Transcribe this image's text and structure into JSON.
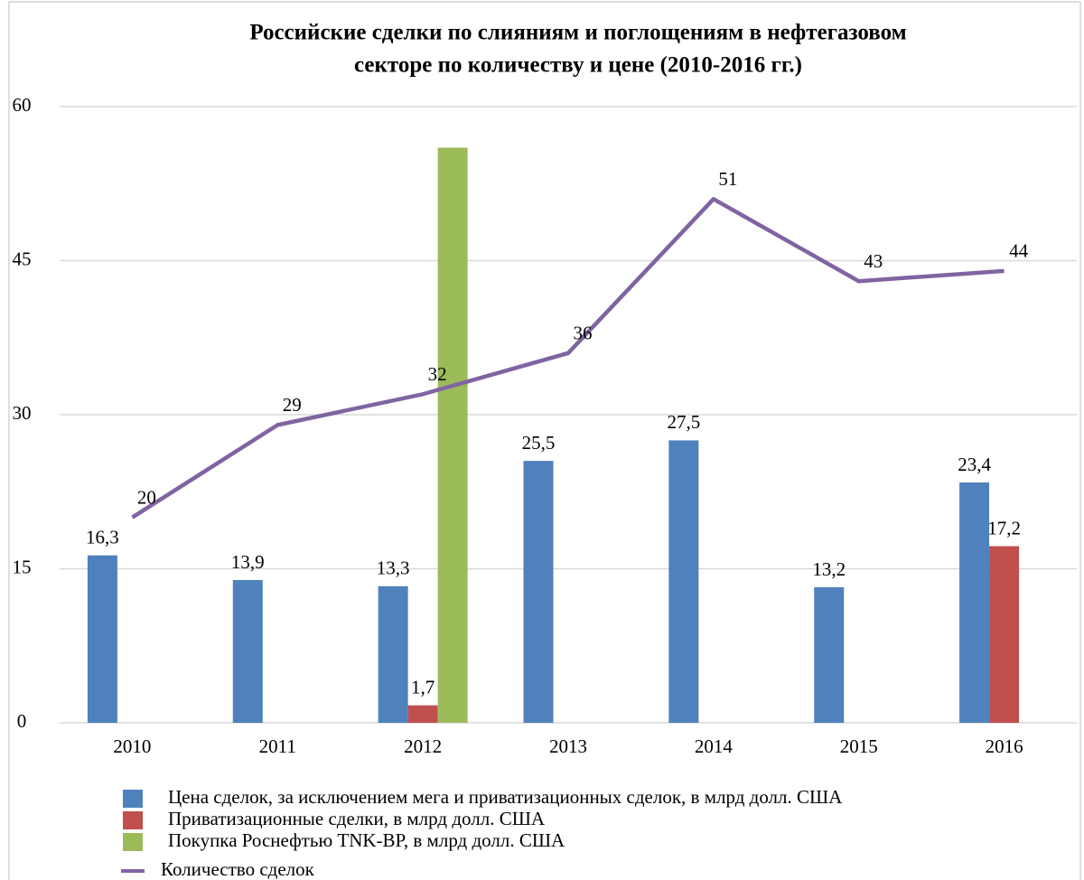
{
  "chart_data": {
    "type": "bar",
    "title": "Российские сделки по слияниям и поглощениям в нефтегазовом",
    "subtitle": "секторе по количеству и цене (2010-2016 гг.)",
    "categories": [
      "2010",
      "2011",
      "2012",
      "2013",
      "2014",
      "2015",
      "2016"
    ],
    "series": [
      {
        "name": "Цена сделок, за исключением мега и приватизационных сделок, в млрд долл. США",
        "color": "#4f81bd",
        "values": [
          16.3,
          13.9,
          13.3,
          25.5,
          27.5,
          13.2,
          23.4
        ],
        "value_labels": [
          "16,3",
          "13,9",
          "13,3",
          "25,5",
          "27,5",
          "13,2",
          "23,4"
        ]
      },
      {
        "name": "Приватизационные сделки, в млрд долл. США",
        "color": "#c0504d",
        "values": [
          null,
          null,
          1.7,
          null,
          null,
          null,
          17.2
        ],
        "value_labels": [
          null,
          null,
          "1,7",
          null,
          null,
          null,
          "17,2"
        ]
      },
      {
        "name": "Покупка Роснефтью TNK-BP, в млрд долл. США",
        "color": "#9bbb59",
        "values": [
          null,
          null,
          56,
          null,
          null,
          null,
          null
        ]
      },
      {
        "name": "Количество сделок",
        "color": "#8064a2",
        "type": "line",
        "values": [
          20,
          29,
          32,
          36,
          51,
          43,
          44
        ]
      }
    ],
    "ylim": [
      0,
      60
    ],
    "yticks": [
      0,
      15,
      30,
      45,
      60
    ],
    "grid": true
  }
}
